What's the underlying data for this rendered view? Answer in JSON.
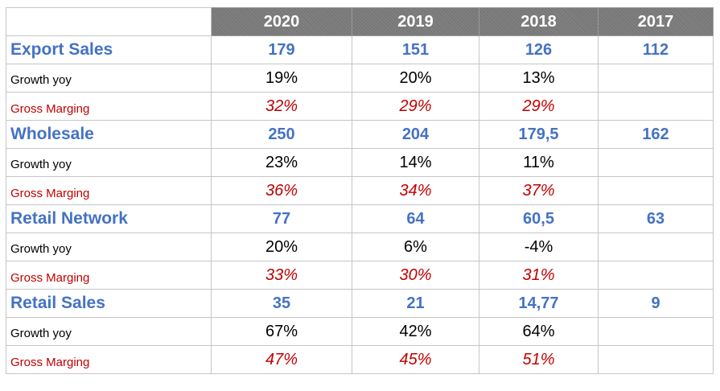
{
  "chart_data": {
    "type": "table",
    "columns": [
      "2020",
      "2019",
      "2018",
      "2017"
    ],
    "groups": [
      {
        "name": "Export Sales",
        "sales": [
          "179",
          "151",
          "126",
          "112"
        ],
        "growth_label": "Growth yoy",
        "growth": [
          "19%",
          "20%",
          "13%",
          ""
        ],
        "margin_label": "Gross Marging",
        "margin": [
          "32%",
          "29%",
          "29%",
          ""
        ]
      },
      {
        "name": "Wholesale",
        "sales": [
          "250",
          "204",
          "179,5",
          "162"
        ],
        "growth_label": "Growth yoy",
        "growth": [
          "23%",
          "14%",
          "11%",
          ""
        ],
        "margin_label": "Gross Marging",
        "margin": [
          "36%",
          "34%",
          "37%",
          ""
        ]
      },
      {
        "name": "Retail Network",
        "sales": [
          "77",
          "64",
          "60,5",
          "63"
        ],
        "growth_label": "Growth yoy",
        "growth": [
          "20%",
          "6%",
          "-4%",
          ""
        ],
        "margin_label": "Gross Marging",
        "margin": [
          "33%",
          "30%",
          "31%",
          ""
        ]
      },
      {
        "name": "Retail Sales",
        "sales": [
          "35",
          "21",
          "14,77",
          "9"
        ],
        "growth_label": "Growth yoy",
        "growth": [
          "67%",
          "42%",
          "64%",
          ""
        ],
        "margin_label": "Gross Marging",
        "margin": [
          "47%",
          "45%",
          "51%",
          ""
        ]
      }
    ],
    "colors": {
      "header_bg": "#808080",
      "header_text": "#ffffff",
      "sales_text": "#4472c4",
      "growth_text": "#000000",
      "margin_text": "#c00000",
      "grid": "#c6c6c6"
    }
  }
}
